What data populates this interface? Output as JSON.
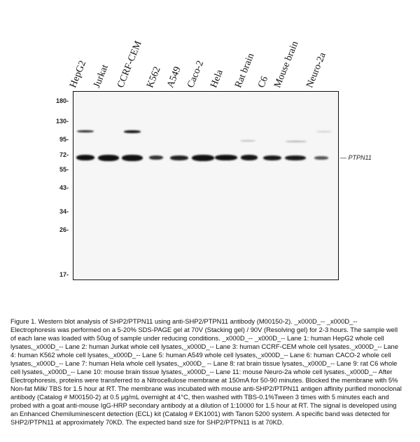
{
  "lanes": [
    "HepG2",
    "Jurkat",
    "CCRF-CEM",
    "K562",
    "A549",
    "Caco-2",
    "Hela",
    "Rat brain",
    "C6",
    "Mouse brain",
    "Neuro-2a"
  ],
  "markers": [
    "180-",
    "130-",
    "95-",
    "72-",
    "55-",
    "43-",
    "34-",
    "26-",
    "17-"
  ],
  "target_label": "— PTPN11",
  "caption": "Figure 1. Western blot analysis of SHP2/PTPN11 using anti-SHP2/PTPN11 antibody (M00150-2). _x000D_-- _x000D_-- Electrophoresis was performed on a 5-20% SDS-PAGE gel at 70V (Stacking gel) / 90V (Resolving gel) for 2-3 hours. The sample well of each lane was loaded with 50ug of sample under reducing conditions. _x000D_-- _x000D_-- Lane 1: human HepG2 whole cell lysates,_x000D_-- Lane 2: human Jurkat whole cell lysates,_x000D_-- Lane 3: human CCRF-CEM whole cell lysates._x000D_-- Lane 4: human K562 whole cell lysates,_x000D_-- Lane 5: human A549 whole cell lysates,_x000D_-- Lane 6: human CACO-2 whole cell lysates,_x000D_-- Lane 7: human Hela whole cell lysates,_x000D_ -- Lane 8: rat brain tissue lysates,_x000D_-- Lane 9: rat C6 whole cell lysates,_x000D_-- Lane 10: mouse brain tissue lysates,_x000D_-- Lane 11: mouse Neuro-2a whole cell lysates._x000D_-- After Electrophoresis, proteins were transferred to a Nitrocellulose membrane at 150mA for 50-90 minutes. Blocked the membrane with 5% Non-fat Milk/ TBS for 1.5 hour at RT. The membrane was incubated with mouse anti-SHP2/PTPN11 antigen affinity purified monoclonal antibody (Catalog # M00150-2) at 0.5 μg/mL overnight at 4°C, then washed with TBS-0.1%Tween 3 times with 5 minutes each and probed with a goat anti-mouse IgG-HRP secondary antibody at a dilution of 1:10000 for 1.5 hour at RT. The signal is developed using an Enhanced Chemiluminescent detection (ECL) kit (Catalog # EK1001) with Tanon 5200 system. A specific band was detected for SHP2/PTPN11 at approximately 70KD. The expected band size for SHP2/PTPN11 is at 70KD."
}
